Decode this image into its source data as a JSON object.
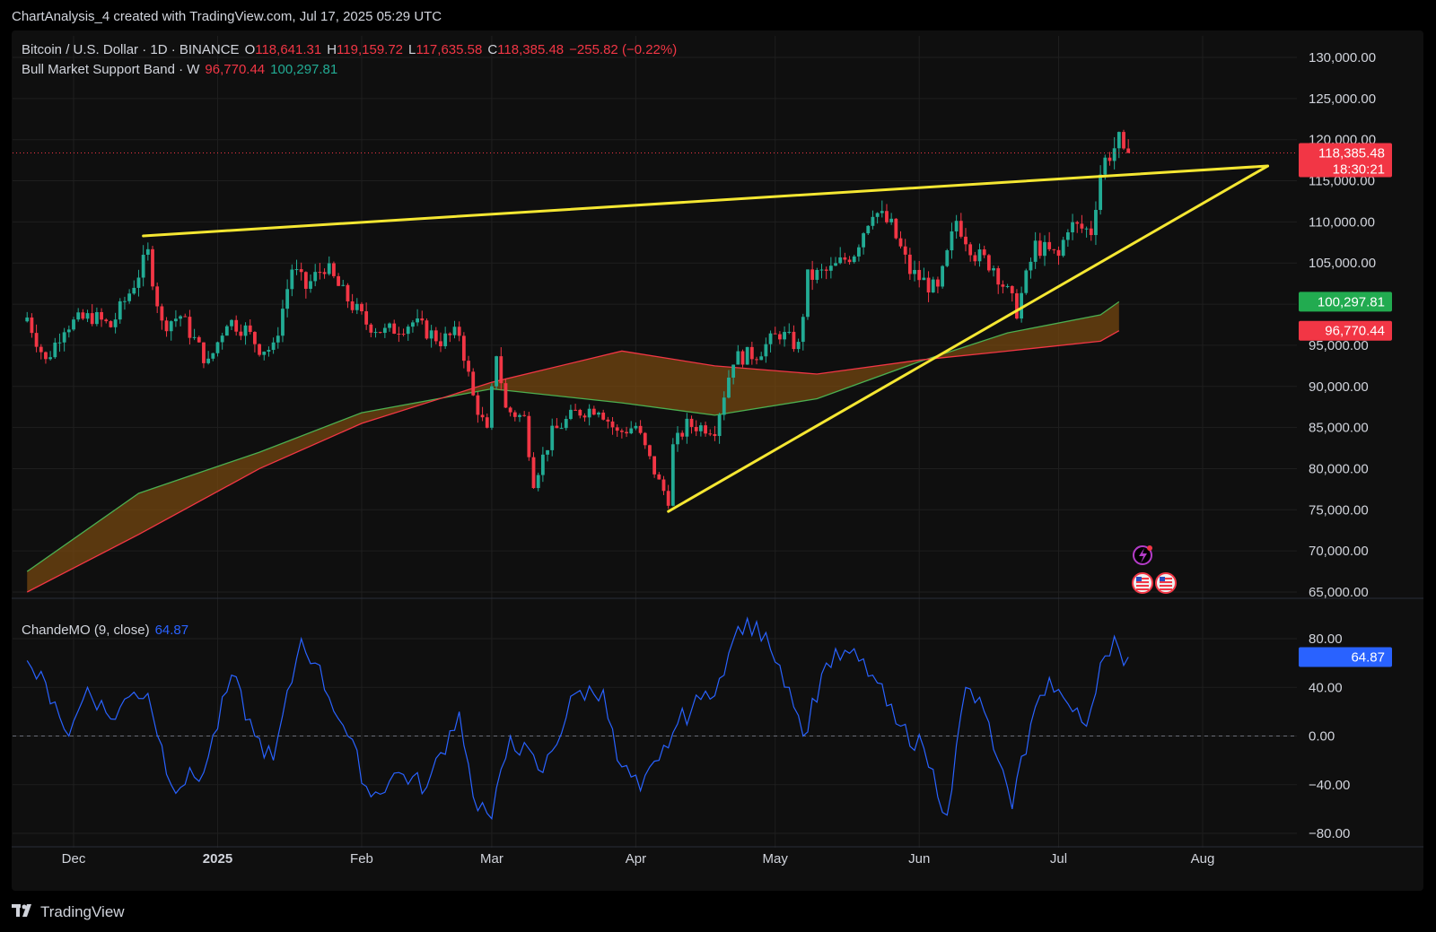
{
  "header": {
    "caption": "ChartAnalysis_4 created with TradingView.com, Jul 17, 2025 05:29 UTC"
  },
  "legend": {
    "symbol": "Bitcoin / U.S. Dollar · 1D · BINANCE",
    "open_label": "O",
    "open": "118,641.31",
    "high_label": "H",
    "high": "119,159.72",
    "low_label": "L",
    "low": "117,635.58",
    "close_label": "C",
    "close": "118,385.48",
    "change": "−255.82 (−0.22%)",
    "band_name": "Bull Market Support Band · W",
    "band_low": "96,770.44",
    "band_high": "100,297.81",
    "osc_name": "ChandeMO (9, close)",
    "osc_value": "64.87"
  },
  "price_labels": {
    "last_price": "118,385.48",
    "countdown": "18:30:21",
    "band_high": "100,297.81",
    "band_low": "96,770.44",
    "osc": "64.87"
  },
  "footer": {
    "brand": "TradingView",
    "brand_icon": "tradingview-logo-icon"
  },
  "icons": {
    "events": [
      "lightning-event-icon",
      "us-flag-event-icon",
      "us-flag-event-icon"
    ]
  },
  "colors": {
    "up": "#22ab94",
    "down": "#f23645",
    "trendline": "#f5e732",
    "band_sma": "#4caf50",
    "band_ema": "#f23645",
    "band_fill": "#7a4a10",
    "oscillator": "#2962ff"
  },
  "chart_data": {
    "type": "candlestick",
    "title": "Bitcoin / U.S. Dollar · 1D · BINANCE",
    "x_ticks": [
      "Dec",
      "2025",
      "Feb",
      "Mar",
      "Apr",
      "May",
      "Jun",
      "Jul",
      "Aug"
    ],
    "price_ticks": [
      "130,000.00",
      "125,000.00",
      "120,000.00",
      "115,000.00",
      "110,000.00",
      "105,000.00",
      "100,000.00",
      "95,000.00",
      "90,000.00",
      "85,000.00",
      "80,000.00",
      "75,000.00",
      "70,000.00",
      "65,000.00"
    ],
    "price_range": [
      65000,
      130000
    ],
    "last_close": 118385.48,
    "price_series": [
      {
        "date": "2024-11-21",
        "close": 98400
      },
      {
        "date": "2024-11-25",
        "close": 93000
      },
      {
        "date": "2024-11-29",
        "close": 97400
      },
      {
        "date": "2024-12-05",
        "close": 98500
      },
      {
        "date": "2024-12-09",
        "close": 97300
      },
      {
        "date": "2024-12-13",
        "close": 101400
      },
      {
        "date": "2024-12-17",
        "close": 106100
      },
      {
        "date": "2024-12-20",
        "close": 97500
      },
      {
        "date": "2024-12-24",
        "close": 98600
      },
      {
        "date": "2024-12-30",
        "close": 92700
      },
      {
        "date": "2025-01-03",
        "close": 98100
      },
      {
        "date": "2025-01-07",
        "close": 96900
      },
      {
        "date": "2025-01-10",
        "close": 94700
      },
      {
        "date": "2025-01-13",
        "close": 94500
      },
      {
        "date": "2025-01-17",
        "close": 104400
      },
      {
        "date": "2025-01-20",
        "close": 102000
      },
      {
        "date": "2025-01-24",
        "close": 104700
      },
      {
        "date": "2025-01-28",
        "close": 101300
      },
      {
        "date": "2025-02-02",
        "close": 97700
      },
      {
        "date": "2025-02-06",
        "close": 96600
      },
      {
        "date": "2025-02-12",
        "close": 97800
      },
      {
        "date": "2025-02-18",
        "close": 95600
      },
      {
        "date": "2025-02-22",
        "close": 96500
      },
      {
        "date": "2025-02-25",
        "close": 88700
      },
      {
        "date": "2025-02-28",
        "close": 84300
      },
      {
        "date": "2025-03-02",
        "close": 94200
      },
      {
        "date": "2025-03-04",
        "close": 87200
      },
      {
        "date": "2025-03-08",
        "close": 86100
      },
      {
        "date": "2025-03-10",
        "close": 78500
      },
      {
        "date": "2025-03-14",
        "close": 84300
      },
      {
        "date": "2025-03-19",
        "close": 86800
      },
      {
        "date": "2025-03-24",
        "close": 87500
      },
      {
        "date": "2025-03-28",
        "close": 84300
      },
      {
        "date": "2025-04-01",
        "close": 85200
      },
      {
        "date": "2025-04-06",
        "close": 78300
      },
      {
        "date": "2025-04-08",
        "close": 76300
      },
      {
        "date": "2025-04-09",
        "close": 82600
      },
      {
        "date": "2025-04-12",
        "close": 85300
      },
      {
        "date": "2025-04-18",
        "close": 84900
      },
      {
        "date": "2025-04-22",
        "close": 93400
      },
      {
        "date": "2025-04-27",
        "close": 94000
      },
      {
        "date": "2025-05-02",
        "close": 96500
      },
      {
        "date": "2025-05-06",
        "close": 94800
      },
      {
        "date": "2025-05-08",
        "close": 103200
      },
      {
        "date": "2025-05-13",
        "close": 104100
      },
      {
        "date": "2025-05-18",
        "close": 106400
      },
      {
        "date": "2025-05-22",
        "close": 111600
      },
      {
        "date": "2025-05-26",
        "close": 109400
      },
      {
        "date": "2025-05-30",
        "close": 104000
      },
      {
        "date": "2025-06-05",
        "close": 101500
      },
      {
        "date": "2025-06-09",
        "close": 110200
      },
      {
        "date": "2025-06-13",
        "close": 106100
      },
      {
        "date": "2025-06-17",
        "close": 104600
      },
      {
        "date": "2025-06-22",
        "close": 99200
      },
      {
        "date": "2025-06-26",
        "close": 107100
      },
      {
        "date": "2025-07-01",
        "close": 105700
      },
      {
        "date": "2025-07-03",
        "close": 109600
      },
      {
        "date": "2025-07-08",
        "close": 108900
      },
      {
        "date": "2025-07-10",
        "close": 116000
      },
      {
        "date": "2025-07-11",
        "close": 117500
      },
      {
        "date": "2025-07-14",
        "close": 119800
      },
      {
        "date": "2025-07-15",
        "close": 117700
      },
      {
        "date": "2025-07-16",
        "close": 118385.48
      }
    ],
    "bull_market_support_band": {
      "sma_series": [
        {
          "date": "2024-11-21",
          "value": 67500
        },
        {
          "date": "2024-12-15",
          "value": 77000
        },
        {
          "date": "2025-01-10",
          "value": 82000
        },
        {
          "date": "2025-02-01",
          "value": 86800
        },
        {
          "date": "2025-03-01",
          "value": 89700
        },
        {
          "date": "2025-03-29",
          "value": 88000
        },
        {
          "date": "2025-04-18",
          "value": 86500
        },
        {
          "date": "2025-05-10",
          "value": 88500
        },
        {
          "date": "2025-06-01",
          "value": 93000
        },
        {
          "date": "2025-06-20",
          "value": 96500
        },
        {
          "date": "2025-07-10",
          "value": 98700
        },
        {
          "date": "2025-07-14",
          "value": 100297.81
        }
      ],
      "ema_series": [
        {
          "date": "2024-11-21",
          "value": 65000
        },
        {
          "date": "2024-12-15",
          "value": 72000
        },
        {
          "date": "2025-01-10",
          "value": 80000
        },
        {
          "date": "2025-02-01",
          "value": 85500
        },
        {
          "date": "2025-03-01",
          "value": 90500
        },
        {
          "date": "2025-03-29",
          "value": 94300
        },
        {
          "date": "2025-04-18",
          "value": 92500
        },
        {
          "date": "2025-05-10",
          "value": 91500
        },
        {
          "date": "2025-06-01",
          "value": 93200
        },
        {
          "date": "2025-06-20",
          "value": 94300
        },
        {
          "date": "2025-07-10",
          "value": 95500
        },
        {
          "date": "2025-07-14",
          "value": 96770.44
        }
      ]
    },
    "trendlines": [
      {
        "from": {
          "date": "2024-12-16",
          "price": 108300
        },
        "to": {
          "date": "2025-08-15",
          "price": 116800
        }
      },
      {
        "from": {
          "date": "2025-04-08",
          "price": 74800
        },
        "to": {
          "date": "2025-08-15",
          "price": 116800
        }
      }
    ],
    "oscillator": {
      "name": "ChandeMO (9, close)",
      "last": 64.87,
      "ticks": [
        "80.00",
        "40.00",
        "0.00",
        "−40.00",
        "−80.00"
      ],
      "range": [
        -88,
        95
      ],
      "series": [
        {
          "date": "2024-11-21",
          "value": 62
        },
        {
          "date": "2024-11-27",
          "value": 28
        },
        {
          "date": "2024-11-30",
          "value": 0
        },
        {
          "date": "2024-12-04",
          "value": 40
        },
        {
          "date": "2024-12-09",
          "value": 14
        },
        {
          "date": "2024-12-14",
          "value": 36
        },
        {
          "date": "2024-12-17",
          "value": 35
        },
        {
          "date": "2024-12-22",
          "value": -40
        },
        {
          "date": "2024-12-29",
          "value": -30
        },
        {
          "date": "2025-01-04",
          "value": 50
        },
        {
          "date": "2025-01-09",
          "value": 0
        },
        {
          "date": "2025-01-13",
          "value": -20
        },
        {
          "date": "2025-01-19",
          "value": 80
        },
        {
          "date": "2025-01-22",
          "value": 60
        },
        {
          "date": "2025-01-29",
          "value": 0
        },
        {
          "date": "2025-02-03",
          "value": -50
        },
        {
          "date": "2025-02-09",
          "value": -30
        },
        {
          "date": "2025-02-15",
          "value": -42
        },
        {
          "date": "2025-02-22",
          "value": 20
        },
        {
          "date": "2025-02-25",
          "value": -50
        },
        {
          "date": "2025-03-01",
          "value": -68
        },
        {
          "date": "2025-03-05",
          "value": 0
        },
        {
          "date": "2025-03-12",
          "value": -30
        },
        {
          "date": "2025-03-19",
          "value": 35
        },
        {
          "date": "2025-03-25",
          "value": 38
        },
        {
          "date": "2025-03-28",
          "value": -20
        },
        {
          "date": "2025-04-02",
          "value": -45
        },
        {
          "date": "2025-04-06",
          "value": -20
        },
        {
          "date": "2025-04-10",
          "value": 10
        },
        {
          "date": "2025-04-15",
          "value": 30
        },
        {
          "date": "2025-04-20",
          "value": 50
        },
        {
          "date": "2025-04-23",
          "value": 90
        },
        {
          "date": "2025-04-29",
          "value": 85
        },
        {
          "date": "2025-05-04",
          "value": 40
        },
        {
          "date": "2025-05-07",
          "value": 0
        },
        {
          "date": "2025-05-12",
          "value": 60
        },
        {
          "date": "2025-05-17",
          "value": 68
        },
        {
          "date": "2025-05-22",
          "value": 50
        },
        {
          "date": "2025-05-27",
          "value": 10
        },
        {
          "date": "2025-06-02",
          "value": -10
        },
        {
          "date": "2025-06-07",
          "value": -65
        },
        {
          "date": "2025-06-11",
          "value": 40
        },
        {
          "date": "2025-06-15",
          "value": 20
        },
        {
          "date": "2025-06-18",
          "value": -20
        },
        {
          "date": "2025-06-21",
          "value": -60
        },
        {
          "date": "2025-06-25",
          "value": 10
        },
        {
          "date": "2025-06-29",
          "value": 48
        },
        {
          "date": "2025-07-04",
          "value": 20
        },
        {
          "date": "2025-07-07",
          "value": 8
        },
        {
          "date": "2025-07-10",
          "value": 60
        },
        {
          "date": "2025-07-13",
          "value": 82
        },
        {
          "date": "2025-07-15",
          "value": 58
        },
        {
          "date": "2025-07-16",
          "value": 64.87
        }
      ]
    }
  }
}
